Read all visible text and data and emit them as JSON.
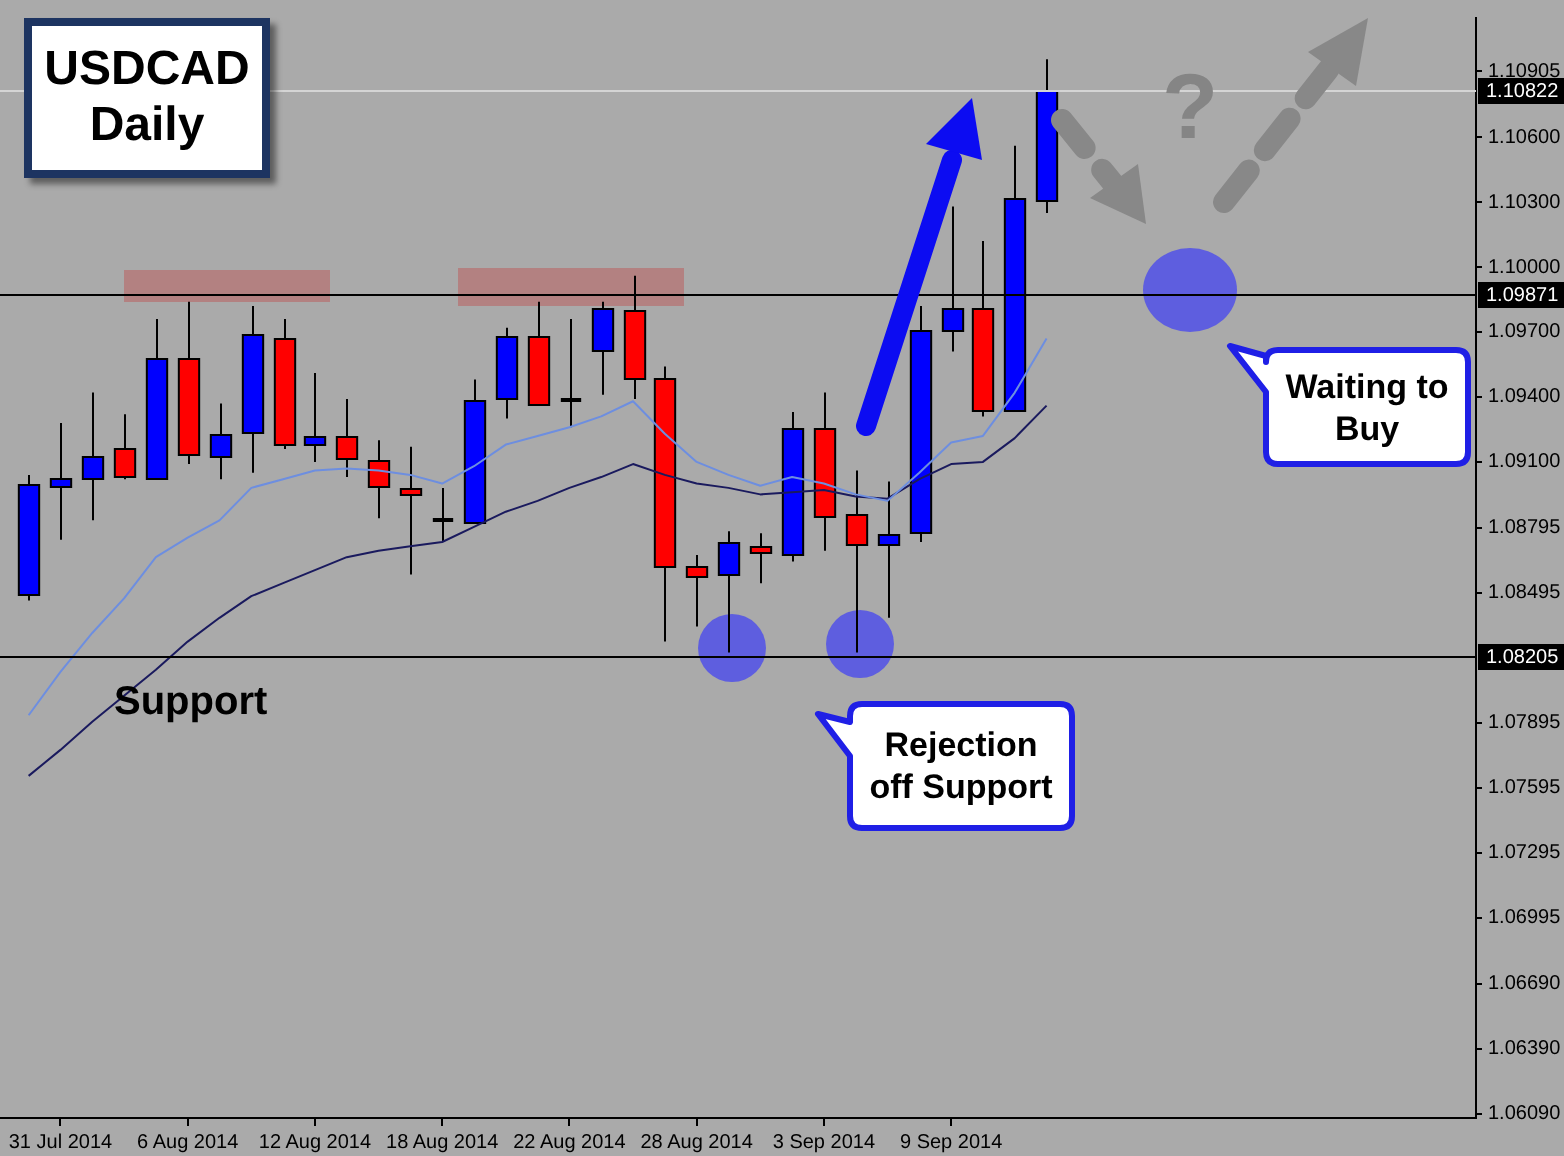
{
  "chart_data": {
    "type": "candlestick",
    "title": "USDCAD Daily",
    "categories": [
      null,
      "31 Jul 2014",
      null,
      null,
      null,
      "6 Aug 2014",
      null,
      null,
      null,
      "12 Aug 2014",
      null,
      null,
      null,
      "18 Aug 2014",
      null,
      null,
      null,
      "22 Aug 2014",
      null,
      null,
      null,
      "28 Aug 2014",
      null,
      null,
      null,
      "3 Sep 2014",
      null,
      null,
      null,
      "9 Sep 2014",
      null,
      null,
      null
    ],
    "ohlc": [
      [
        1.0849,
        1.0904,
        1.0846,
        1.09
      ],
      [
        1.0899,
        1.0928,
        1.0874,
        1.0903
      ],
      [
        1.0903,
        1.0942,
        1.0883,
        1.0913
      ],
      [
        1.0916,
        1.0932,
        1.0902,
        1.0903
      ],
      [
        1.0903,
        1.0976,
        1.0902,
        1.0958
      ],
      [
        1.0958,
        1.0984,
        1.0909,
        1.0914
      ],
      [
        1.0913,
        1.0937,
        1.0902,
        1.0923
      ],
      [
        1.0924,
        1.0982,
        1.0905,
        1.0969
      ],
      [
        1.0967,
        1.0976,
        1.0916,
        1.0918
      ],
      [
        1.0918,
        1.0951,
        1.091,
        1.0922
      ],
      [
        1.0922,
        1.0939,
        1.0903,
        1.0912
      ],
      [
        1.0911,
        1.092,
        1.0884,
        1.0899
      ],
      [
        1.0898,
        1.0917,
        1.0858,
        1.0895
      ],
      [
        1.0883,
        1.0898,
        1.0873,
        1.0883
      ],
      [
        1.0883,
        1.0948,
        1.0883,
        1.0939
      ],
      [
        1.0939,
        1.0972,
        1.093,
        1.0968
      ],
      [
        1.0968,
        1.0984,
        1.0937,
        1.0937
      ],
      [
        1.0939,
        1.0976,
        1.0926,
        1.0939
      ],
      [
        1.0962,
        1.0984,
        1.0941,
        1.0981
      ],
      [
        1.098,
        1.0996,
        1.0939,
        1.0949
      ],
      [
        1.0949,
        1.0954,
        1.0827,
        1.0862
      ],
      [
        1.0862,
        1.0867,
        1.0834,
        1.0857
      ],
      [
        1.0858,
        1.0878,
        1.0822,
        1.0873
      ],
      [
        1.0871,
        1.0877,
        1.0854,
        1.0868
      ],
      [
        1.0868,
        1.0933,
        1.0864,
        1.0926
      ],
      [
        1.0926,
        1.0942,
        1.0869,
        1.0885
      ],
      [
        1.0886,
        1.0906,
        1.0822,
        1.0872
      ],
      [
        1.0872,
        1.0901,
        1.0838,
        1.0877
      ],
      [
        1.0878,
        1.0982,
        1.0873,
        1.0971
      ],
      [
        1.0971,
        1.1028,
        1.0961,
        1.0981
      ],
      [
        1.0981,
        1.1012,
        1.0931,
        1.0934
      ],
      [
        1.0934,
        1.1056,
        1.0934,
        1.1032
      ],
      [
        1.1031,
        1.1096,
        1.1025,
        1.1082
      ]
    ],
    "color": "#000000",
    "colors": [
      "#0000ff",
      "#0000ff",
      "#0000ff",
      "#ff0000",
      "#0000ff",
      "#ff0000",
      "#0000ff",
      "#0000ff",
      "#ff0000",
      "#0000ff",
      "#ff0000",
      "#ff0000",
      "#ff0000",
      "#000000",
      "#0000ff",
      "#0000ff",
      "#ff0000",
      "#000000",
      "#0000ff",
      "#ff0000",
      "#ff0000",
      "#ff0000",
      "#0000ff",
      "#ff0000",
      "#0000ff",
      "#ff0000",
      "#ff0000",
      "#0000ff",
      "#0000ff",
      "#0000ff",
      "#ff0000",
      "#0000ff",
      "#0000ff"
    ],
    "series": [
      {
        "type": "line",
        "color": "#6d8ee0",
        "values": [
          1.0793,
          1.0813,
          1.0831,
          1.0847,
          1.0866,
          1.0875,
          1.0883,
          1.0898,
          1.0902,
          1.0906,
          1.0907,
          1.0906,
          1.0904,
          1.09,
          1.0908,
          1.0918,
          1.0922,
          1.0926,
          1.0931,
          1.0938,
          1.0923,
          1.091,
          1.0904,
          1.0899,
          1.0903,
          1.09,
          1.0895,
          1.0892,
          1.0905,
          1.0919,
          1.0922,
          1.0942,
          1.0967
        ]
      },
      {
        "type": "line",
        "color": "#1a1a5e",
        "values": [
          1.0765,
          1.0777,
          1.079,
          1.0802,
          1.0814,
          1.0827,
          1.0838,
          1.0848,
          1.0854,
          1.086,
          1.0866,
          1.0869,
          1.0871,
          1.0873,
          1.088,
          1.0887,
          1.0892,
          1.0898,
          1.0903,
          1.0909,
          1.0904,
          1.09,
          1.0898,
          1.0895,
          1.0896,
          1.0897,
          1.0894,
          1.0893,
          1.0902,
          1.0909,
          1.091,
          1.0921,
          1.0936
        ]
      }
    ],
    "ylim": [
      1.0607,
      1.1115
    ],
    "yticks": [
      1.10905,
      {
        "value": 1.106,
        "label": "1.10600"
      },
      {
        "value": 1.103,
        "label": "1.10300"
      },
      {
        "value": 1.1,
        "label": "1.10000"
      },
      {
        "value": 1.097,
        "label": "1.09700"
      },
      {
        "value": 1.094,
        "label": "1.09400"
      },
      {
        "value": 1.091,
        "label": "1.09100"
      },
      1.08795,
      1.08495,
      1.07895,
      1.07595,
      1.07295,
      1.06995,
      {
        "value": 1.0669,
        "label": "1.06690"
      },
      {
        "value": 1.0639,
        "label": "1.06390"
      },
      {
        "value": 1.0609,
        "label": "1.06090"
      }
    ],
    "ref_lines": [
      {
        "axis": "y",
        "value": 1.10822,
        "label": "1.10822",
        "color": "#d4d4d4"
      },
      {
        "axis": "y",
        "value": 1.09871,
        "label": "1.09871",
        "color": "#000000"
      },
      {
        "axis": "y",
        "value": 1.08205,
        "label": "1.08205",
        "color": "#000000"
      }
    ],
    "marker": "none",
    "annotations": [
      "Support",
      "Rejection off Support",
      "Waiting to Buy",
      "?"
    ]
  }
}
